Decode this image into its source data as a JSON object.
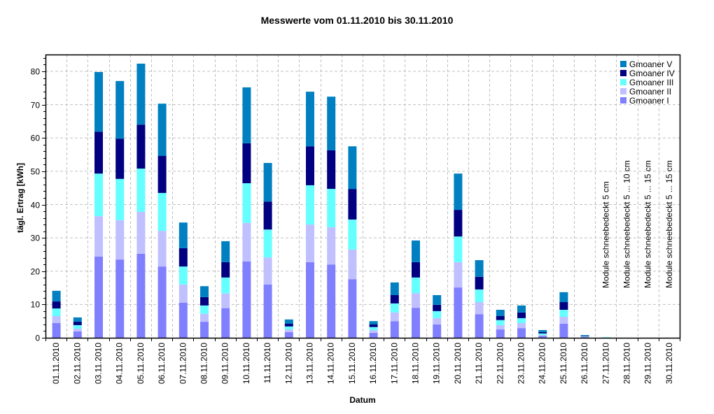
{
  "chart_data": {
    "type": "bar",
    "stacked": true,
    "title": "Messwerte vom 01.11.2010 bis 30.11.2010",
    "xlabel": "Datum",
    "ylabel": "tägl. Ertrag [kWh]",
    "ylim": [
      0,
      85
    ],
    "yticks": [
      0,
      10,
      20,
      30,
      40,
      50,
      60,
      70,
      80
    ],
    "grid": true,
    "legend_position": "top-right",
    "categories": [
      "01.11.2010",
      "02.11.2010",
      "03.11.2010",
      "04.11.2010",
      "05.11.2010",
      "06.11.2010",
      "07.11.2010",
      "08.11.2010",
      "09.11.2010",
      "10.11.2010",
      "11.11.2010",
      "12.11.2010",
      "13.11.2010",
      "14.11.2010",
      "15.11.2010",
      "16.11.2010",
      "17.11.2010",
      "18.11.2010",
      "19.11.2010",
      "20.11.2010",
      "21.11.2010",
      "22.11.2010",
      "23.11.2010",
      "24.11.2010",
      "25.11.2010",
      "26.11.2010",
      "27.11.2010",
      "28.11.2010",
      "29.11.2010",
      "30.11.2010"
    ],
    "series": [
      {
        "name": "Gmoaner I",
        "color": "#8080ff",
        "values": [
          4.4,
          1.9,
          24.4,
          23.5,
          25.2,
          21.4,
          10.5,
          4.8,
          8.9,
          22.9,
          16.0,
          1.7,
          22.7,
          22.0,
          17.6,
          1.5,
          5.0,
          9.0,
          4.0,
          15.1,
          7.1,
          2.5,
          2.9,
          0.6,
          4.2,
          0.3,
          0.05,
          0,
          0,
          0
        ]
      },
      {
        "name": "Gmoaner II",
        "color": "#c0c0ff",
        "values": [
          2.1,
          0.8,
          12.1,
          11.8,
          12.6,
          10.7,
          5.5,
          2.4,
          4.4,
          11.6,
          8.1,
          0.8,
          11.3,
          11.2,
          8.9,
          0.8,
          2.6,
          4.4,
          1.9,
          7.6,
          3.6,
          1.3,
          1.5,
          0.2,
          2.1,
          0.1,
          0.05,
          0,
          0,
          0
        ]
      },
      {
        "name": "Gmoaner III",
        "color": "#66ffff",
        "values": [
          2.3,
          1.1,
          12.8,
          12.4,
          13.0,
          11.4,
          5.4,
          2.5,
          4.8,
          11.9,
          8.4,
          0.9,
          11.8,
          11.5,
          9.0,
          0.9,
          2.7,
          4.7,
          2.1,
          7.7,
          3.8,
          1.5,
          1.5,
          0.5,
          2.1,
          0.1,
          0.1,
          0,
          0,
          0
        ]
      },
      {
        "name": "Gmoaner IV",
        "color": "#000080",
        "values": [
          2.1,
          1.0,
          12.6,
          12.1,
          13.2,
          11.1,
          5.5,
          2.5,
          4.6,
          12.0,
          8.4,
          0.8,
          11.7,
          11.6,
          9.2,
          0.8,
          2.5,
          4.6,
          1.9,
          8.0,
          3.8,
          1.2,
          1.7,
          0.4,
          2.3,
          0.2,
          0,
          0,
          0,
          0
        ]
      },
      {
        "name": "Gmoaner V",
        "color": "#0080c0",
        "values": [
          3.2,
          1.3,
          17.9,
          17.3,
          18.3,
          15.7,
          7.7,
          3.3,
          6.3,
          16.8,
          11.6,
          1.3,
          16.4,
          16.1,
          12.8,
          1.0,
          3.8,
          6.5,
          2.9,
          10.9,
          5.0,
          1.9,
          2.1,
          0.6,
          3.0,
          0.1,
          0,
          0,
          0,
          0
        ]
      }
    ],
    "annotations": [
      {
        "category_index": 26,
        "text": "Module schneebedeckt 5 cm"
      },
      {
        "category_index": 27,
        "text": "Module schneebedeckt 5 ... 10 cm"
      },
      {
        "category_index": 28,
        "text": "Module schneebedeckt 5 ... 15 cm"
      },
      {
        "category_index": 29,
        "text": "Module schneebedeckt 5 ... 15 cm"
      }
    ]
  },
  "legend": {
    "order": [
      "Gmoaner V",
      "Gmoaner IV",
      "Gmoaner III",
      "Gmoaner II",
      "Gmoaner I"
    ]
  },
  "colors": {
    "grid": "#c0c0c0",
    "axis": "#000000",
    "background": "#ffffff"
  }
}
